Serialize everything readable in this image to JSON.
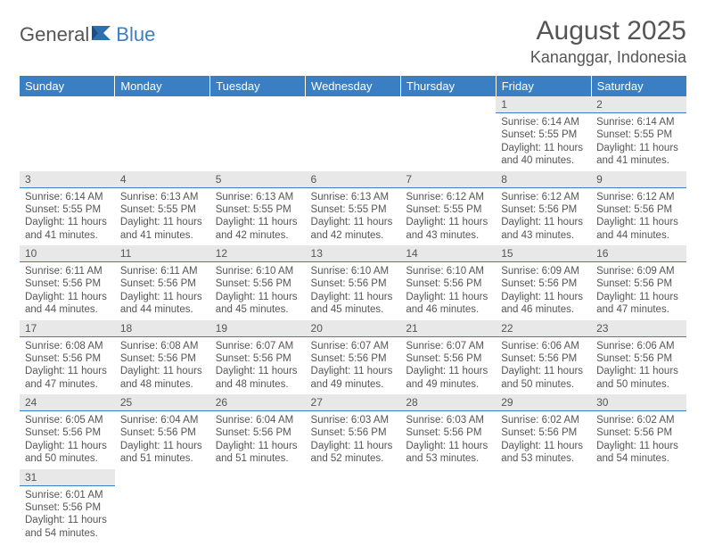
{
  "brand": {
    "general": "General",
    "blue": "Blue"
  },
  "title": "August 2025",
  "location": "Kananggar, Indonesia",
  "colors": {
    "accent": "#3a7fc4",
    "daynum_bg": "#e8e8e8",
    "text": "#555555",
    "bg": "#ffffff"
  },
  "weekdays": [
    "Sunday",
    "Monday",
    "Tuesday",
    "Wednesday",
    "Thursday",
    "Friday",
    "Saturday"
  ],
  "grid": [
    [
      {
        "n": "",
        "sr": "",
        "ss": "",
        "dl": ""
      },
      {
        "n": "",
        "sr": "",
        "ss": "",
        "dl": ""
      },
      {
        "n": "",
        "sr": "",
        "ss": "",
        "dl": ""
      },
      {
        "n": "",
        "sr": "",
        "ss": "",
        "dl": ""
      },
      {
        "n": "",
        "sr": "",
        "ss": "",
        "dl": ""
      },
      {
        "n": "1",
        "sr": "Sunrise: 6:14 AM",
        "ss": "Sunset: 5:55 PM",
        "dl": "Daylight: 11 hours and 40 minutes."
      },
      {
        "n": "2",
        "sr": "Sunrise: 6:14 AM",
        "ss": "Sunset: 5:55 PM",
        "dl": "Daylight: 11 hours and 41 minutes."
      }
    ],
    [
      {
        "n": "3",
        "sr": "Sunrise: 6:14 AM",
        "ss": "Sunset: 5:55 PM",
        "dl": "Daylight: 11 hours and 41 minutes."
      },
      {
        "n": "4",
        "sr": "Sunrise: 6:13 AM",
        "ss": "Sunset: 5:55 PM",
        "dl": "Daylight: 11 hours and 41 minutes."
      },
      {
        "n": "5",
        "sr": "Sunrise: 6:13 AM",
        "ss": "Sunset: 5:55 PM",
        "dl": "Daylight: 11 hours and 42 minutes."
      },
      {
        "n": "6",
        "sr": "Sunrise: 6:13 AM",
        "ss": "Sunset: 5:55 PM",
        "dl": "Daylight: 11 hours and 42 minutes."
      },
      {
        "n": "7",
        "sr": "Sunrise: 6:12 AM",
        "ss": "Sunset: 5:55 PM",
        "dl": "Daylight: 11 hours and 43 minutes."
      },
      {
        "n": "8",
        "sr": "Sunrise: 6:12 AM",
        "ss": "Sunset: 5:56 PM",
        "dl": "Daylight: 11 hours and 43 minutes."
      },
      {
        "n": "9",
        "sr": "Sunrise: 6:12 AM",
        "ss": "Sunset: 5:56 PM",
        "dl": "Daylight: 11 hours and 44 minutes."
      }
    ],
    [
      {
        "n": "10",
        "sr": "Sunrise: 6:11 AM",
        "ss": "Sunset: 5:56 PM",
        "dl": "Daylight: 11 hours and 44 minutes."
      },
      {
        "n": "11",
        "sr": "Sunrise: 6:11 AM",
        "ss": "Sunset: 5:56 PM",
        "dl": "Daylight: 11 hours and 44 minutes."
      },
      {
        "n": "12",
        "sr": "Sunrise: 6:10 AM",
        "ss": "Sunset: 5:56 PM",
        "dl": "Daylight: 11 hours and 45 minutes."
      },
      {
        "n": "13",
        "sr": "Sunrise: 6:10 AM",
        "ss": "Sunset: 5:56 PM",
        "dl": "Daylight: 11 hours and 45 minutes."
      },
      {
        "n": "14",
        "sr": "Sunrise: 6:10 AM",
        "ss": "Sunset: 5:56 PM",
        "dl": "Daylight: 11 hours and 46 minutes."
      },
      {
        "n": "15",
        "sr": "Sunrise: 6:09 AM",
        "ss": "Sunset: 5:56 PM",
        "dl": "Daylight: 11 hours and 46 minutes."
      },
      {
        "n": "16",
        "sr": "Sunrise: 6:09 AM",
        "ss": "Sunset: 5:56 PM",
        "dl": "Daylight: 11 hours and 47 minutes."
      }
    ],
    [
      {
        "n": "17",
        "sr": "Sunrise: 6:08 AM",
        "ss": "Sunset: 5:56 PM",
        "dl": "Daylight: 11 hours and 47 minutes."
      },
      {
        "n": "18",
        "sr": "Sunrise: 6:08 AM",
        "ss": "Sunset: 5:56 PM",
        "dl": "Daylight: 11 hours and 48 minutes."
      },
      {
        "n": "19",
        "sr": "Sunrise: 6:07 AM",
        "ss": "Sunset: 5:56 PM",
        "dl": "Daylight: 11 hours and 48 minutes."
      },
      {
        "n": "20",
        "sr": "Sunrise: 6:07 AM",
        "ss": "Sunset: 5:56 PM",
        "dl": "Daylight: 11 hours and 49 minutes."
      },
      {
        "n": "21",
        "sr": "Sunrise: 6:07 AM",
        "ss": "Sunset: 5:56 PM",
        "dl": "Daylight: 11 hours and 49 minutes."
      },
      {
        "n": "22",
        "sr": "Sunrise: 6:06 AM",
        "ss": "Sunset: 5:56 PM",
        "dl": "Daylight: 11 hours and 50 minutes."
      },
      {
        "n": "23",
        "sr": "Sunrise: 6:06 AM",
        "ss": "Sunset: 5:56 PM",
        "dl": "Daylight: 11 hours and 50 minutes."
      }
    ],
    [
      {
        "n": "24",
        "sr": "Sunrise: 6:05 AM",
        "ss": "Sunset: 5:56 PM",
        "dl": "Daylight: 11 hours and 50 minutes."
      },
      {
        "n": "25",
        "sr": "Sunrise: 6:04 AM",
        "ss": "Sunset: 5:56 PM",
        "dl": "Daylight: 11 hours and 51 minutes."
      },
      {
        "n": "26",
        "sr": "Sunrise: 6:04 AM",
        "ss": "Sunset: 5:56 PM",
        "dl": "Daylight: 11 hours and 51 minutes."
      },
      {
        "n": "27",
        "sr": "Sunrise: 6:03 AM",
        "ss": "Sunset: 5:56 PM",
        "dl": "Daylight: 11 hours and 52 minutes."
      },
      {
        "n": "28",
        "sr": "Sunrise: 6:03 AM",
        "ss": "Sunset: 5:56 PM",
        "dl": "Daylight: 11 hours and 53 minutes."
      },
      {
        "n": "29",
        "sr": "Sunrise: 6:02 AM",
        "ss": "Sunset: 5:56 PM",
        "dl": "Daylight: 11 hours and 53 minutes."
      },
      {
        "n": "30",
        "sr": "Sunrise: 6:02 AM",
        "ss": "Sunset: 5:56 PM",
        "dl": "Daylight: 11 hours and 54 minutes."
      }
    ],
    [
      {
        "n": "31",
        "sr": "Sunrise: 6:01 AM",
        "ss": "Sunset: 5:56 PM",
        "dl": "Daylight: 11 hours and 54 minutes."
      },
      {
        "n": "",
        "sr": "",
        "ss": "",
        "dl": ""
      },
      {
        "n": "",
        "sr": "",
        "ss": "",
        "dl": ""
      },
      {
        "n": "",
        "sr": "",
        "ss": "",
        "dl": ""
      },
      {
        "n": "",
        "sr": "",
        "ss": "",
        "dl": ""
      },
      {
        "n": "",
        "sr": "",
        "ss": "",
        "dl": ""
      },
      {
        "n": "",
        "sr": "",
        "ss": "",
        "dl": ""
      }
    ]
  ]
}
